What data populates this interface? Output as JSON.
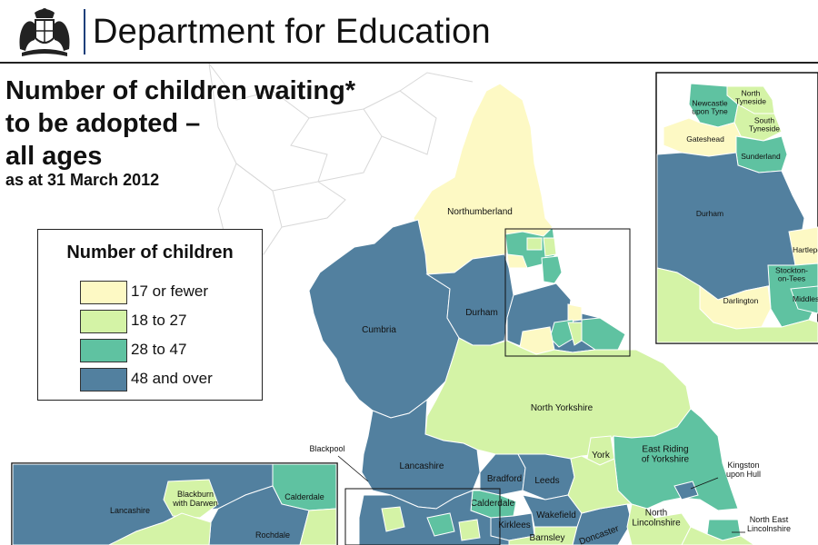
{
  "header": {
    "department": "Department for Education",
    "crest": "royal-coat-of-arms"
  },
  "title": {
    "main": "Number of children waiting*\nto be adopted –\nall ages",
    "subtitle": "as at 31 March 2012"
  },
  "legend": {
    "title": "Number of children",
    "items": [
      {
        "label": "17 or fewer",
        "color": "#fdf9c4"
      },
      {
        "label": "18 to 27",
        "color": "#d4f3a6"
      },
      {
        "label": "28 to 47",
        "color": "#5fc2a1"
      },
      {
        "label": "48 and over",
        "color": "#52809f"
      }
    ]
  },
  "regions": {
    "northumberland": {
      "name": "Northumberland",
      "category": "17 or fewer"
    },
    "cumbria": {
      "name": "Cumbria",
      "category": "48 and over"
    },
    "durham": {
      "name": "Durham",
      "category": "48 and over"
    },
    "north_yorkshire": {
      "name": "North Yorkshire",
      "category": "18 to 27"
    },
    "lancashire": {
      "name": "Lancashire",
      "category": "48 and over"
    },
    "blackpool": {
      "name": "Blackpool"
    },
    "york": {
      "name": "York",
      "category": "18 to 27"
    },
    "east_riding": {
      "name": "East Riding\nof Yorkshire",
      "category": "28 to 47"
    },
    "kingston_upon_hull": {
      "name": "Kingston\nupon Hull",
      "category": "48 and over"
    },
    "bradford": {
      "name": "Bradford",
      "category": "48 and over"
    },
    "leeds": {
      "name": "Leeds",
      "category": "48 and over"
    },
    "calderdale": {
      "name": "Calderdale",
      "category": "28 to 47"
    },
    "kirklees": {
      "name": "Kirklees",
      "category": "48 and over"
    },
    "wakefield": {
      "name": "Wakefield",
      "category": "48 and over"
    },
    "barnsley": {
      "name": "Barnsley",
      "category": "18 to 27"
    },
    "doncaster": {
      "name": "Doncaster",
      "category": "48 and over"
    },
    "north_lincolnshire": {
      "name": "North\nLincolnshire",
      "category": "18 to 27"
    },
    "north_east_lincolnshire": {
      "name": "North East\nLincolnshire",
      "category": "28 to 47"
    }
  },
  "inset_north_east": {
    "regions": {
      "north_tyneside": {
        "name": "North\nTyneside",
        "category": "18 to 27"
      },
      "newcastle": {
        "name": "Newcastle\nupon Tyne",
        "category": "28 to 47"
      },
      "south_tyneside": {
        "name": "South\nTyneside",
        "category": "18 to 27"
      },
      "gateshead": {
        "name": "Gateshead",
        "category": "17 or fewer"
      },
      "sunderland": {
        "name": "Sunderland",
        "category": "28 to 47"
      },
      "durham": {
        "name": "Durham",
        "category": "48 and over"
      },
      "hartlepool": {
        "name": "Hartlepo",
        "category": "17 or fewer"
      },
      "stockton": {
        "name": "Stockton-\non-Tees",
        "category": "28 to 47"
      },
      "middlesbrough": {
        "name": "Middles",
        "category": "28 to 47"
      },
      "darlington": {
        "name": "Darlington",
        "category": "17 or fewer"
      }
    }
  },
  "inset_north_west": {
    "regions": {
      "lancashire": {
        "name": "Lancashire",
        "category": "48 and over"
      },
      "blackburn": {
        "name": "Blackburn\nwith Darwen",
        "category": "18 to 27"
      },
      "calderdale": {
        "name": "Calderdale",
        "category": "28 to 47"
      },
      "rochdale": {
        "name": "Rochdale",
        "category": "48 and over"
      }
    }
  }
}
